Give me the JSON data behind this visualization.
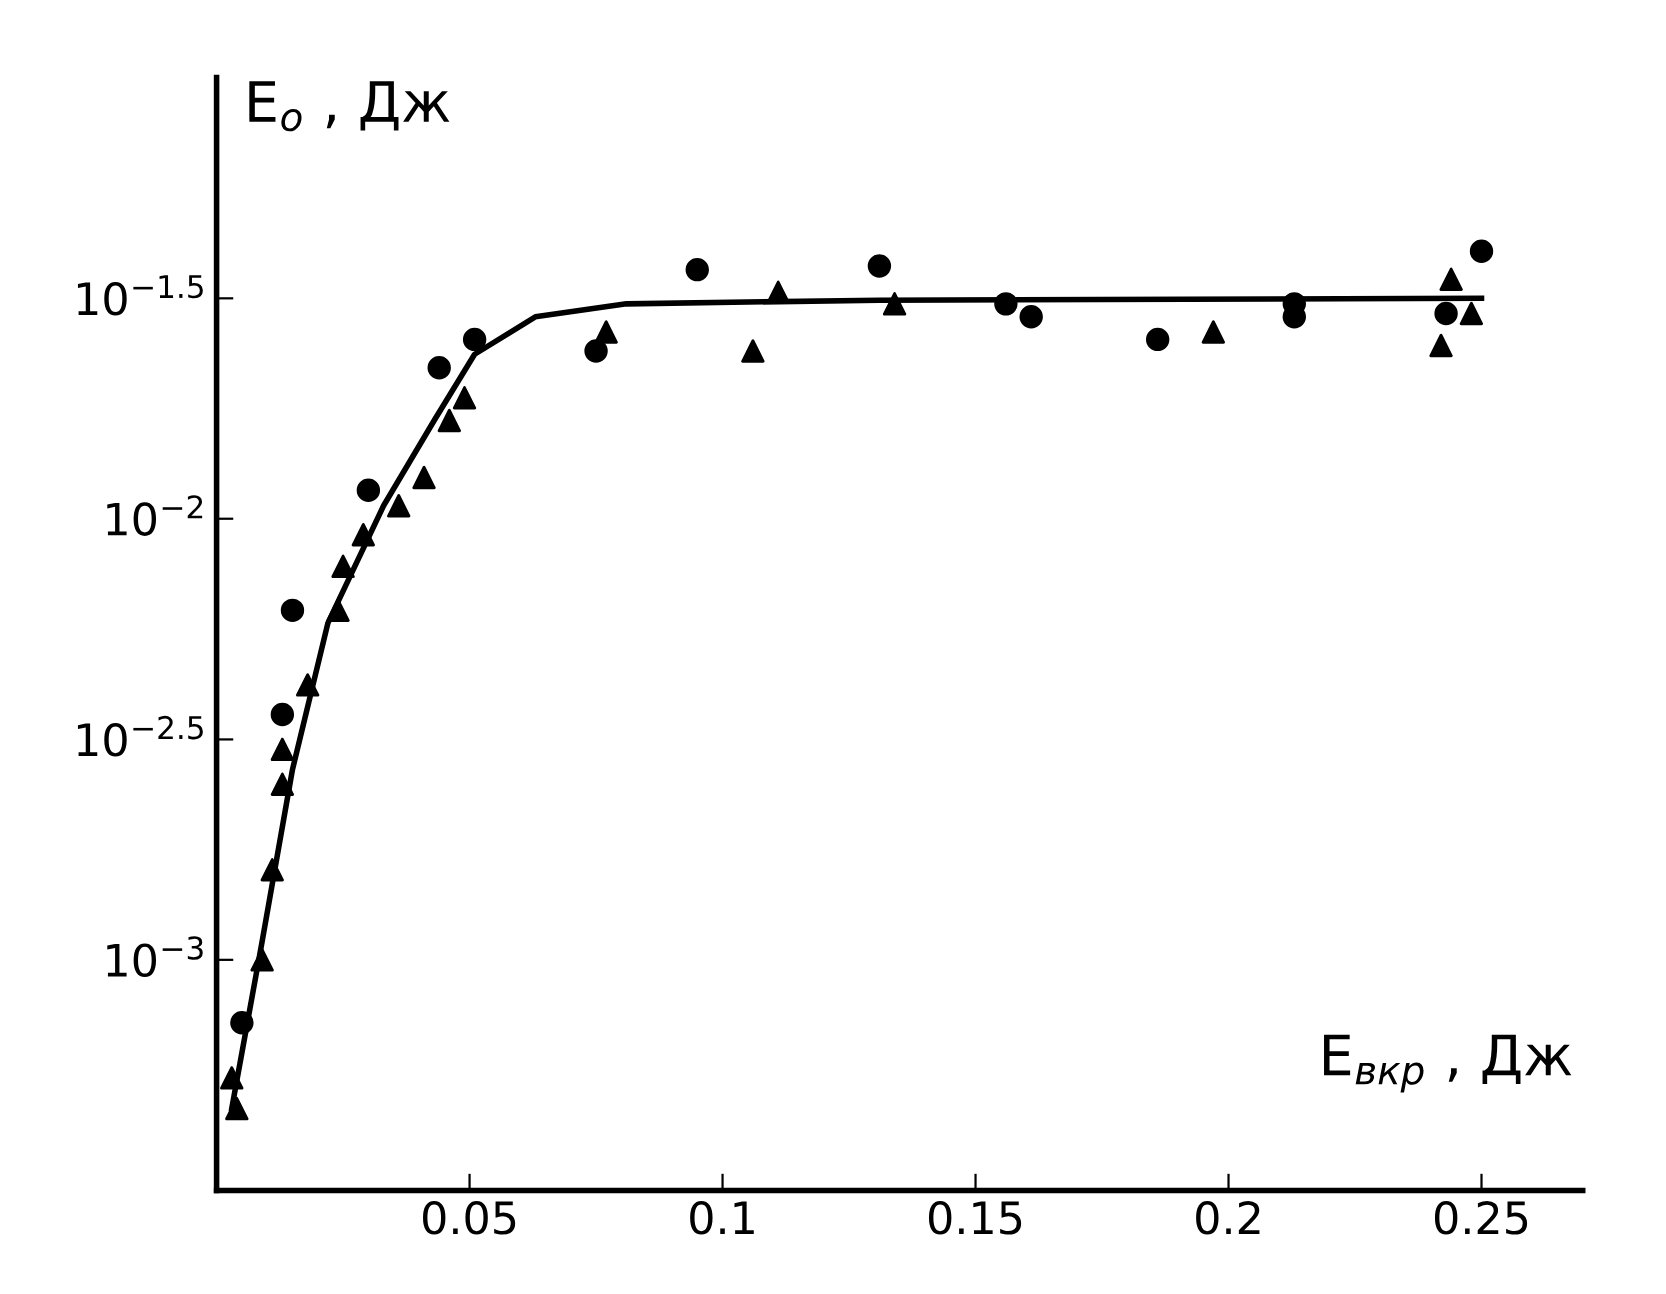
{
  "chart_data": {
    "type": "scatter",
    "xlabel": "E$_{вкр}$ , Дж",
    "ylabel": "E$_{o}$ , Дж",
    "log": "y",
    "grid": false,
    "xlim": [
      0,
      0.27
    ],
    "ylim": [
      0.0003,
      0.1
    ],
    "xticks": [
      0.05,
      0.1,
      0.15,
      0.2,
      0.25
    ],
    "yticks": [
      {
        "value": 0.001,
        "label": "10$^{−3}$"
      },
      {
        "value": 0.00316,
        "label": "10$^{−2.5}$"
      },
      {
        "value": 0.01,
        "label": "10$^{−2}$"
      },
      {
        "value": 0.0316,
        "label": "10$^{−1.5}$"
      }
    ],
    "series": [
      {
        "marker": "circle",
        "color": "#000000",
        "x": [
          0.005,
          0.015,
          0.013,
          0.03,
          0.044,
          0.051,
          0.075,
          0.095,
          0.131,
          0.156,
          0.161,
          0.186,
          0.213,
          0.213,
          0.243,
          0.25
        ],
        "values": [
          0.00072,
          0.0062,
          0.0036,
          0.0116,
          0.022,
          0.0255,
          0.024,
          0.0367,
          0.0374,
          0.0307,
          0.0287,
          0.0255,
          0.0307,
          0.0287,
          0.0292,
          0.0404
        ]
      },
      {
        "marker": "triangle",
        "color": "#000000",
        "x": [
          0.003,
          0.004,
          0.009,
          0.011,
          0.013,
          0.013,
          0.018,
          0.024,
          0.025,
          0.029,
          0.036,
          0.041,
          0.046,
          0.049,
          0.077,
          0.106,
          0.111,
          0.134,
          0.197,
          0.242,
          0.244,
          0.248
        ],
        "values": [
          0.00054,
          0.00046,
          0.001,
          0.0016,
          0.0025,
          0.003,
          0.0042,
          0.0062,
          0.0078,
          0.0092,
          0.0107,
          0.0124,
          0.0167,
          0.0188,
          0.0265,
          0.024,
          0.0326,
          0.0307,
          0.0265,
          0.0247,
          0.0349,
          0.0292
        ]
      },
      {
        "type": "line",
        "marker": "none",
        "line_style": "solid",
        "color": "#000000",
        "x": [
          0.003,
          0.009,
          0.015,
          0.022,
          0.033,
          0.043,
          0.051,
          0.063,
          0.081,
          0.131,
          0.25
        ],
        "values": [
          0.00046,
          0.0011,
          0.0027,
          0.0058,
          0.0107,
          0.0167,
          0.0236,
          0.0287,
          0.0307,
          0.0313,
          0.0316
        ]
      }
    ]
  }
}
